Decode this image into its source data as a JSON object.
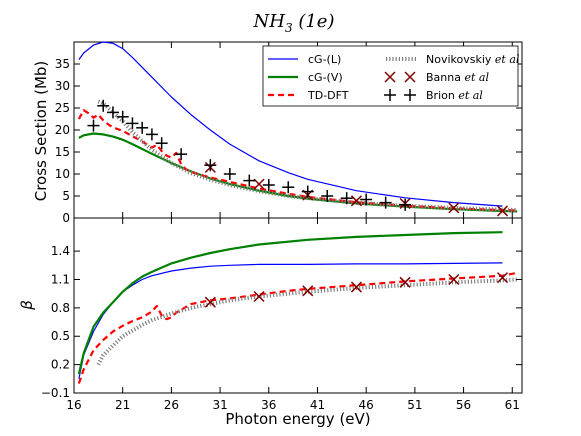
{
  "chart_data": [
    {
      "type": "line",
      "title": "NH3 (1e)",
      "title_main": "NH",
      "title_sub": "3",
      "title_tail": "(1e)",
      "xlabel": "",
      "ylabel": "Cross Section (Mb)",
      "xlim": [
        16,
        62
      ],
      "ylim": [
        0,
        40
      ],
      "yticks": [
        "0",
        "5",
        "10",
        "15",
        "20",
        "25",
        "30",
        "35"
      ],
      "ytick_values": [
        0,
        5,
        10,
        15,
        20,
        25,
        30,
        35
      ],
      "legend_placement": "top-right",
      "legend": [
        {
          "label": "cG-(L)",
          "style": "thin-line",
          "color": "#0000ff"
        },
        {
          "label": "cG-(V)",
          "style": "thick-line",
          "color": "#008000"
        },
        {
          "label": "TD-DFT",
          "style": "dashed",
          "color": "#ff0000"
        },
        {
          "label": "Novikovskiy",
          "label_italic": "et al",
          "style": "dotted",
          "color": "#808080"
        },
        {
          "label": "Banna",
          "label_italic": "et al",
          "style": "x-marker",
          "color": "#800000"
        },
        {
          "label": "Brion",
          "label_italic": "et al",
          "style": "plus-marker",
          "color": "#000000"
        }
      ],
      "series": [
        {
          "name": "cG-(L)",
          "color": "#0000ff",
          "x": [
            16.5,
            17,
            18,
            19,
            20,
            21,
            22,
            24,
            26,
            28,
            30,
            32,
            35,
            38,
            40,
            45,
            50,
            55,
            60
          ],
          "y": [
            36,
            37.5,
            39.3,
            40,
            39.7,
            38.5,
            36.5,
            32,
            27.5,
            23.5,
            20,
            16.8,
            13,
            10.3,
            8.8,
            6.2,
            4.6,
            3.5,
            2.7
          ]
        },
        {
          "name": "cG-(V)",
          "color": "#008000",
          "x": [
            16.5,
            17,
            18,
            19,
            20,
            21,
            22,
            24,
            26,
            28,
            30,
            32,
            35,
            38,
            40,
            45,
            50,
            55,
            60,
            61.5
          ],
          "y": [
            18.2,
            18.8,
            19.2,
            19,
            18.5,
            17.8,
            16.8,
            14.6,
            12.5,
            10.6,
            9,
            7.7,
            6.2,
            5,
            4.4,
            3.3,
            2.6,
            2,
            1.6,
            1.5
          ]
        },
        {
          "name": "TD-DFT",
          "color": "#ff0000",
          "x": [
            16.5,
            17,
            17.5,
            18,
            18.5,
            19,
            19.5,
            20,
            20.5,
            21,
            22,
            23,
            24,
            24.5,
            25,
            25.5,
            26,
            26.5,
            27,
            27.5,
            28,
            29,
            30,
            32,
            35,
            38,
            40,
            45,
            50,
            55,
            60,
            61.5
          ],
          "y": [
            22.5,
            24.5,
            23.8,
            22.8,
            23.5,
            22.2,
            21.3,
            20.6,
            20.2,
            19.8,
            18.6,
            17.4,
            16,
            16.6,
            15.2,
            14.2,
            13.7,
            14.8,
            12.2,
            11.1,
            10.5,
            9.8,
            9.2,
            8.2,
            6.7,
            5.5,
            4.8,
            3.6,
            2.8,
            2.2,
            1.8,
            1.7
          ]
        },
        {
          "name": "Novikovskiy et al",
          "color": "#808080",
          "x": [
            18.5,
            19,
            20,
            21,
            22,
            24,
            26,
            28,
            30,
            32,
            35,
            38,
            40,
            45,
            50,
            55,
            60,
            61.5
          ],
          "y": [
            26.5,
            26,
            24,
            22,
            19.5,
            15.5,
            12.5,
            10.2,
            8.7,
            7.5,
            6.1,
            5,
            4.5,
            3.5,
            2.8,
            2.3,
            1.9,
            1.8
          ]
        },
        {
          "name": "Banna et al",
          "color": "#800000",
          "marker": "x",
          "x": [
            30,
            35,
            40,
            45,
            50,
            55,
            60
          ],
          "y": [
            11.5,
            7.7,
            5.2,
            3.9,
            3.3,
            2.3,
            1.6
          ]
        },
        {
          "name": "Brion et al",
          "color": "#000000",
          "marker": "+",
          "x": [
            18,
            19,
            20,
            21,
            22,
            23,
            24,
            25,
            27,
            30,
            32,
            34,
            36,
            38,
            40,
            42,
            44,
            46,
            48,
            50
          ],
          "y": [
            21,
            25.5,
            24,
            23,
            21.5,
            20.5,
            19,
            17,
            14.5,
            12,
            10,
            8.5,
            7.5,
            7,
            6,
            5,
            4.5,
            4.2,
            3.5,
            3
          ]
        }
      ]
    },
    {
      "type": "line",
      "xlabel": "Photon energy (eV)",
      "ylabel": "β",
      "xlim": [
        16,
        62
      ],
      "ylim": [
        -0.1,
        1.75
      ],
      "xticks": [
        "16",
        "21",
        "26",
        "31",
        "36",
        "41",
        "46",
        "51",
        "56",
        "61"
      ],
      "xtick_values": [
        16,
        21,
        26,
        31,
        36,
        41,
        46,
        51,
        56,
        61
      ],
      "yticks": [
        "−0.1",
        "0.2",
        "0.5",
        "0.8",
        "1.1",
        "1.4"
      ],
      "ytick_values": [
        -0.1,
        0.2,
        0.5,
        0.8,
        1.1,
        1.4
      ],
      "series": [
        {
          "name": "cG-(L)",
          "color": "#0000ff",
          "x": [
            16.5,
            17,
            18,
            19,
            20,
            21,
            22,
            23,
            24,
            26,
            28,
            30,
            32,
            35,
            40,
            45,
            50,
            55,
            60
          ],
          "y": [
            0.05,
            0.3,
            0.55,
            0.73,
            0.86,
            0.97,
            1.04,
            1.1,
            1.14,
            1.19,
            1.22,
            1.24,
            1.25,
            1.26,
            1.26,
            1.265,
            1.265,
            1.27,
            1.275
          ]
        },
        {
          "name": "cG-(V)",
          "color": "#008000",
          "x": [
            16.5,
            17,
            18,
            19,
            20,
            21,
            22,
            23,
            24,
            26,
            28,
            30,
            32,
            35,
            40,
            45,
            50,
            55,
            60
          ],
          "y": [
            0.1,
            0.32,
            0.6,
            0.75,
            0.86,
            0.97,
            1.06,
            1.13,
            1.18,
            1.27,
            1.33,
            1.38,
            1.42,
            1.47,
            1.52,
            1.55,
            1.57,
            1.59,
            1.6
          ]
        },
        {
          "name": "TD-DFT",
          "color": "#ff0000",
          "x": [
            16.5,
            17,
            18,
            19,
            20,
            21,
            22,
            23,
            24,
            24.5,
            25,
            25.5,
            26,
            26.5,
            27,
            28,
            29,
            30,
            32,
            35,
            38,
            40,
            45,
            50,
            55,
            60,
            61.5
          ],
          "y": [
            0.0,
            0.15,
            0.35,
            0.46,
            0.55,
            0.61,
            0.66,
            0.7,
            0.76,
            0.82,
            0.72,
            0.68,
            0.7,
            0.75,
            0.78,
            0.84,
            0.86,
            0.88,
            0.9,
            0.94,
            0.98,
            1.0,
            1.04,
            1.08,
            1.11,
            1.14,
            1.17
          ]
        },
        {
          "name": "Novikovskiy et al",
          "color": "#808080",
          "x": [
            18.5,
            19,
            20,
            21,
            22,
            23,
            24,
            26,
            28,
            30,
            32,
            35,
            40,
            45,
            50,
            55,
            60,
            61.5
          ],
          "y": [
            0.2,
            0.3,
            0.4,
            0.5,
            0.56,
            0.62,
            0.67,
            0.74,
            0.8,
            0.84,
            0.88,
            0.92,
            0.97,
            1.01,
            1.04,
            1.07,
            1.09,
            1.1
          ]
        },
        {
          "name": "Banna et al",
          "color": "#800000",
          "marker": "x",
          "x": [
            30,
            35,
            40,
            45,
            50,
            55,
            60
          ],
          "y": [
            0.86,
            0.92,
            0.98,
            1.02,
            1.07,
            1.1,
            1.12
          ]
        }
      ]
    }
  ]
}
